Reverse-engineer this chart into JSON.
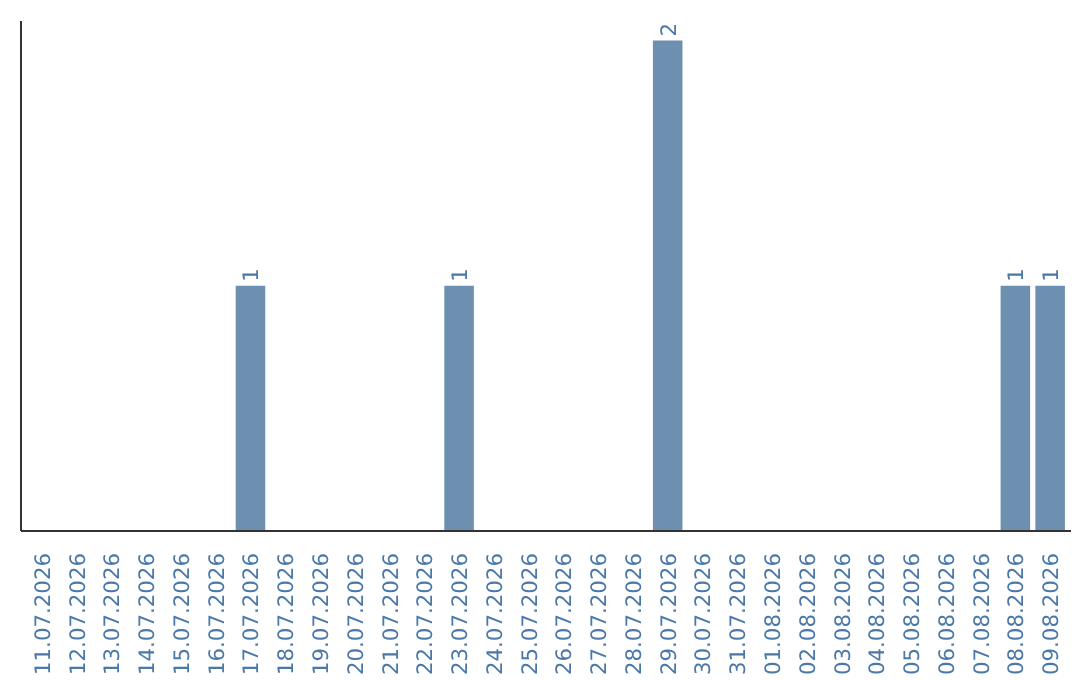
{
  "chart_data": {
    "type": "bar",
    "categories": [
      "11.07.2026",
      "12.07.2026",
      "13.07.2026",
      "14.07.2026",
      "15.07.2026",
      "16.07.2026",
      "17.07.2026",
      "18.07.2026",
      "19.07.2026",
      "20.07.2026",
      "21.07.2026",
      "22.07.2026",
      "23.07.2026",
      "24.07.2026",
      "25.07.2026",
      "26.07.2026",
      "27.07.2026",
      "28.07.2026",
      "29.07.2026",
      "30.07.2026",
      "31.07.2026",
      "01.08.2026",
      "02.08.2026",
      "03.08.2026",
      "04.08.2026",
      "05.08.2026",
      "06.08.2026",
      "07.08.2026",
      "08.08.2026",
      "09.08.2026"
    ],
    "values": [
      0,
      0,
      0,
      0,
      0,
      0,
      1,
      0,
      0,
      0,
      0,
      0,
      1,
      0,
      0,
      0,
      0,
      0,
      2,
      0,
      0,
      0,
      0,
      0,
      0,
      0,
      0,
      0,
      1,
      1
    ],
    "value_labels": [
      null,
      null,
      null,
      null,
      null,
      null,
      "1",
      null,
      null,
      null,
      null,
      null,
      "1",
      null,
      null,
      null,
      null,
      null,
      "2",
      null,
      null,
      null,
      null,
      null,
      null,
      null,
      null,
      null,
      "1",
      "1"
    ],
    "color": "#6d8fb0",
    "ylim": [
      0,
      2.08
    ],
    "tick_labels": "x",
    "grid": false
  }
}
